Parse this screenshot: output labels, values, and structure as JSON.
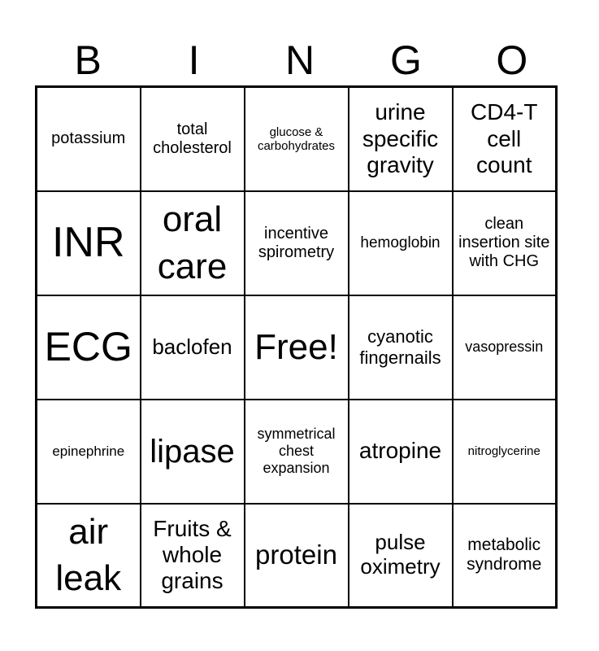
{
  "header": [
    "B",
    "I",
    "N",
    "G",
    "O"
  ],
  "cells": [
    [
      "potassium",
      "total cholesterol",
      "glucose & carbohydrates",
      "urine specific gravity",
      "CD4-T cell count"
    ],
    [
      "INR",
      "oral care",
      "incentive spirometry",
      "hemoglobin",
      "clean insertion site with CHG"
    ],
    [
      "ECG",
      "baclofen",
      "Free!",
      "cyanotic fingernails",
      "vasopressin"
    ],
    [
      "epinephrine",
      "lipase",
      "symmetrical chest expansion",
      "atropine",
      "nitroglycerine"
    ],
    [
      "air leak",
      "Fruits & whole grains",
      "protein",
      "pulse oximetry",
      "metabolic syndrome"
    ]
  ]
}
